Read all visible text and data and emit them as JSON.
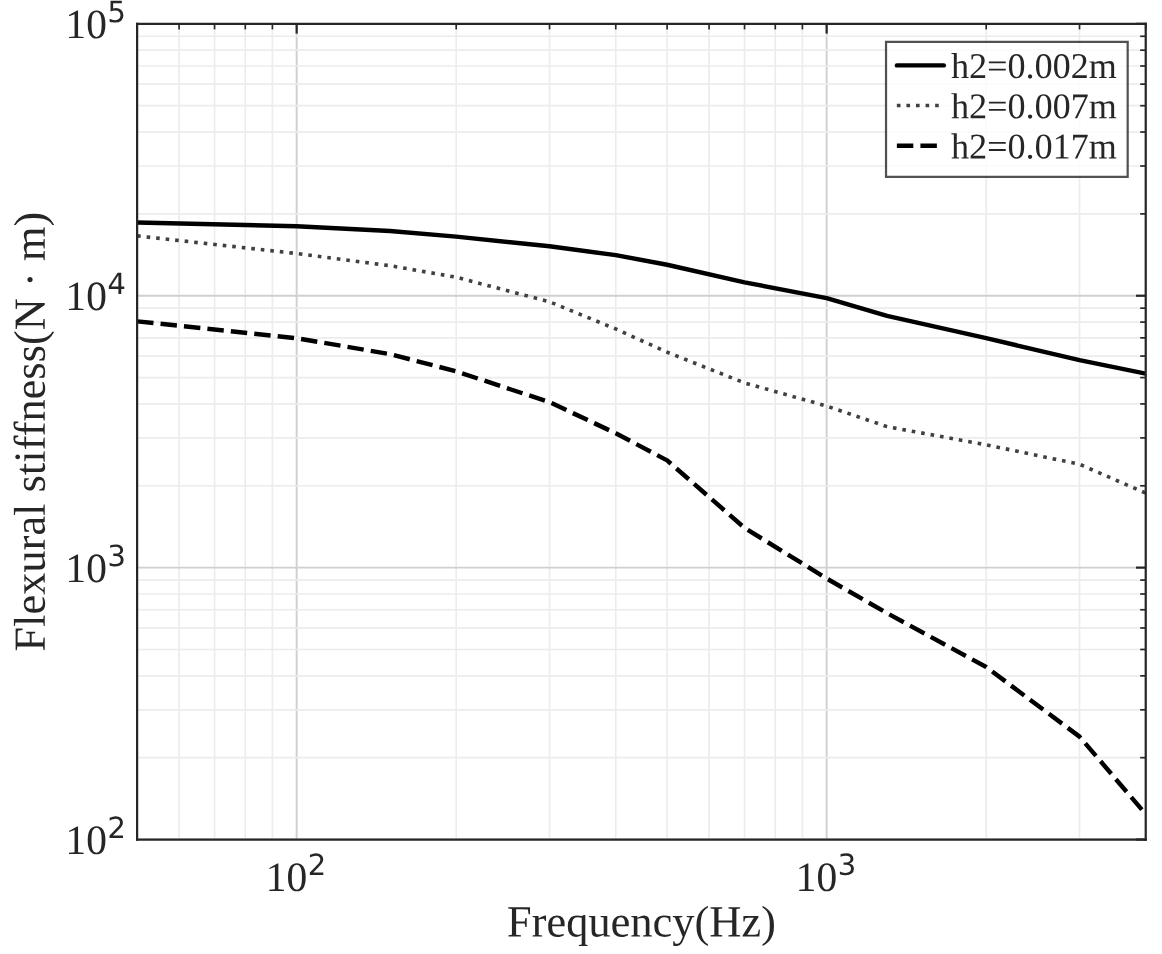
{
  "chart_data": {
    "type": "line",
    "xlabel": "Frequency(Hz)",
    "ylabel": "Flexural stiffness(N · m)",
    "log": "xy",
    "grid": true,
    "legend": "top right",
    "marker": "none",
    "xlim": [
      50,
      4000
    ],
    "ylim": [
      100,
      100000
    ],
    "xticks": [
      {
        "value": 100,
        "label": "10$^{2}$"
      },
      {
        "value": 1000,
        "label": "10$^{3}$"
      }
    ],
    "yticks": [
      {
        "value": 100,
        "label": "10$^{2}$"
      },
      {
        "value": 1000,
        "label": "10$^{3}$"
      },
      {
        "value": 10000,
        "label": "10$^{4}$"
      },
      {
        "value": 100000,
        "label": "10$^{5}$"
      }
    ],
    "x": [
      50,
      100,
      150,
      200,
      300,
      400,
      500,
      700,
      1000,
      1300,
      2000,
      3000,
      4000
    ],
    "series": [
      {
        "name": "h2=0.002m",
        "color": "#000000",
        "line_style": "solid",
        "values": [
          18600,
          18000,
          17300,
          16500,
          15200,
          14100,
          13000,
          11200,
          9800,
          8430,
          6980,
          5800,
          5170
        ]
      },
      {
        "name": "h2=0.007m",
        "color": "#404040",
        "line_style": "dotted",
        "values": [
          16600,
          14300,
          12900,
          11700,
          9500,
          7550,
          6200,
          4780,
          3930,
          3300,
          2830,
          2400,
          1880
        ]
      },
      {
        "name": "h2=0.017m",
        "color": "#000000",
        "line_style": "dashed",
        "values": [
          8050,
          6980,
          6100,
          5270,
          4060,
          3120,
          2480,
          1400,
          912,
          680,
          431,
          239,
          124
        ]
      }
    ]
  }
}
